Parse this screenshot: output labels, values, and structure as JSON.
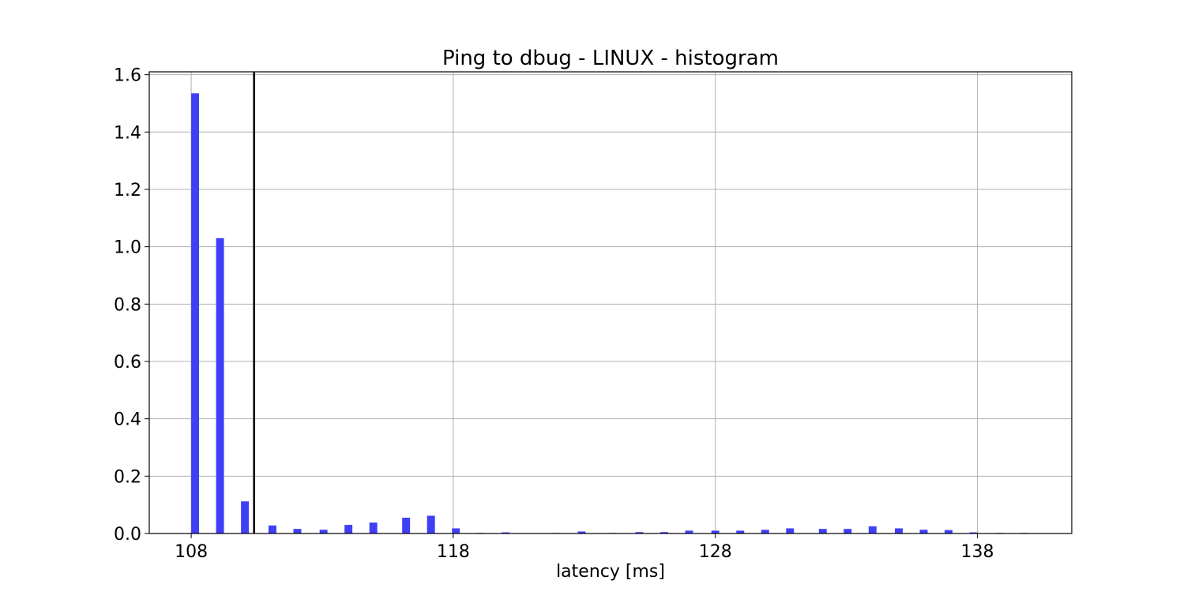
{
  "chart_data": {
    "type": "bar",
    "title": "Ping to dbug - LINUX - histogram",
    "xlabel": "latency [ms]",
    "ylabel": "",
    "xlim": [
      106.4,
      141.6
    ],
    "ylim": [
      0,
      1.61
    ],
    "xticks": [
      108,
      118,
      128,
      138
    ],
    "yticks": [
      0.0,
      0.2,
      0.4,
      0.6,
      0.8,
      1.0,
      1.2,
      1.4,
      1.6
    ],
    "ytick_labels": [
      "0.0",
      "0.2",
      "0.4",
      "0.6",
      "0.8",
      "1.0",
      "1.2",
      "1.4",
      "1.6"
    ],
    "grid": true,
    "bar_color": "#3f3ff5",
    "bar_width": 0.3,
    "bars": [
      {
        "x": 108.15,
        "value": 1.535
      },
      {
        "x": 109.1,
        "value": 1.03
      },
      {
        "x": 110.05,
        "value": 0.112
      },
      {
        "x": 111.1,
        "value": 0.028
      },
      {
        "x": 112.05,
        "value": 0.016
      },
      {
        "x": 113.05,
        "value": 0.013
      },
      {
        "x": 114.0,
        "value": 0.03
      },
      {
        "x": 114.95,
        "value": 0.038
      },
      {
        "x": 116.2,
        "value": 0.055
      },
      {
        "x": 117.15,
        "value": 0.062
      },
      {
        "x": 118.1,
        "value": 0.018
      },
      {
        "x": 119.05,
        "value": 0.002
      },
      {
        "x": 120.0,
        "value": 0.004
      },
      {
        "x": 121.9,
        "value": 0.002
      },
      {
        "x": 122.9,
        "value": 0.007
      },
      {
        "x": 124.1,
        "value": 0.002
      },
      {
        "x": 125.1,
        "value": 0.005
      },
      {
        "x": 126.05,
        "value": 0.005
      },
      {
        "x": 127.0,
        "value": 0.01
      },
      {
        "x": 128.0,
        "value": 0.01
      },
      {
        "x": 128.95,
        "value": 0.01
      },
      {
        "x": 129.9,
        "value": 0.013
      },
      {
        "x": 130.85,
        "value": 0.018
      },
      {
        "x": 132.1,
        "value": 0.016
      },
      {
        "x": 133.05,
        "value": 0.016
      },
      {
        "x": 134.0,
        "value": 0.025
      },
      {
        "x": 135.0,
        "value": 0.018
      },
      {
        "x": 135.95,
        "value": 0.013
      },
      {
        "x": 136.9,
        "value": 0.012
      },
      {
        "x": 137.85,
        "value": 0.004
      },
      {
        "x": 138.85,
        "value": 0.002
      },
      {
        "x": 139.8,
        "value": 0.002
      }
    ],
    "vline": {
      "x": 110.4,
      "color": "#000000"
    }
  }
}
